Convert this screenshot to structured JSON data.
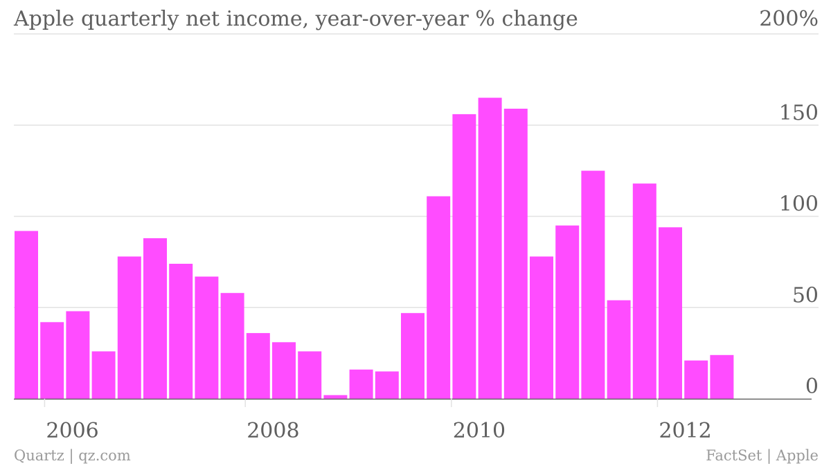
{
  "title": "Apple quarterly net income, year-over-year % change",
  "credit_left": "Quartz | qz.com",
  "credit_right": "FactSet | Apple",
  "colors": {
    "bar": "#ff4cff",
    "grid": "#e2e2e2",
    "axis": "#666666",
    "text": "#5f5f5f"
  },
  "chart_data": {
    "type": "bar",
    "title": "Apple quarterly net income, year-over-year % change",
    "xlabel": "",
    "ylabel": "",
    "ylim": [
      0,
      200
    ],
    "y_ticks": [
      {
        "value": 200,
        "label": "200%"
      },
      {
        "value": 150,
        "label": "150"
      },
      {
        "value": 100,
        "label": "100"
      },
      {
        "value": 50,
        "label": "50"
      },
      {
        "value": 0,
        "label": "0"
      }
    ],
    "x_ticks": [
      {
        "after_bar": 0,
        "label": "2006"
      },
      {
        "after_bar": 8,
        "label": "2008"
      },
      {
        "after_bar": 16,
        "label": "2010"
      },
      {
        "after_bar": 24,
        "label": "2012"
      }
    ],
    "grid": true,
    "values": [
      92,
      42,
      48,
      26,
      78,
      88,
      74,
      67,
      58,
      36,
      31,
      26,
      2,
      16,
      15,
      47,
      111,
      156,
      165,
      159,
      78,
      95,
      125,
      54,
      118,
      94,
      21,
      24,
      0
    ]
  }
}
